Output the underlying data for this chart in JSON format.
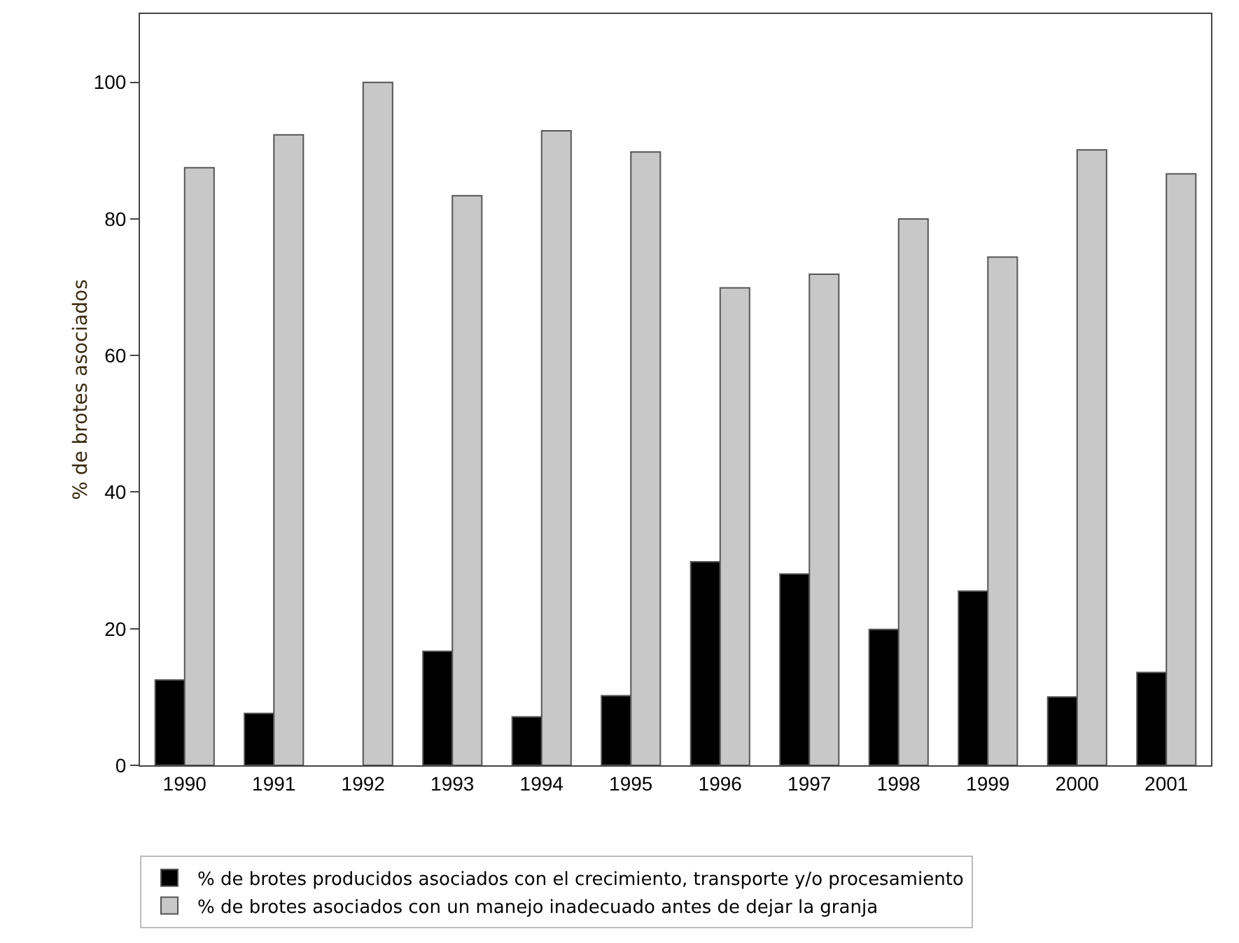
{
  "chart_data": {
    "type": "bar",
    "ylabel": "% de brotes asociados",
    "categories": [
      "1990",
      "1991",
      "1992",
      "1993",
      "1994",
      "1995",
      "1996",
      "1997",
      "1998",
      "1999",
      "2000",
      "2001"
    ],
    "series": [
      {
        "name": "% de brotes producidos asociados con el crecimiento, transporte y/o procesamiento",
        "color": "#000000",
        "values": [
          12.5,
          7.6,
          null,
          16.7,
          7.1,
          10.2,
          29.8,
          28,
          19.9,
          25.5,
          10,
          13.6
        ]
      },
      {
        "name": "% de brotes asociados con un manejo inadecuado antes de dejar la granja",
        "color": "#c8c8c8",
        "values": [
          87.5,
          92.3,
          100,
          83.4,
          92.9,
          89.8,
          69.9,
          71.9,
          80,
          74.4,
          90.1,
          86.6
        ]
      }
    ],
    "ylim": [
      0,
      110
    ],
    "yticks": [
      0,
      20,
      40,
      60,
      80,
      100
    ],
    "grid": false,
    "legend": "bottom"
  }
}
